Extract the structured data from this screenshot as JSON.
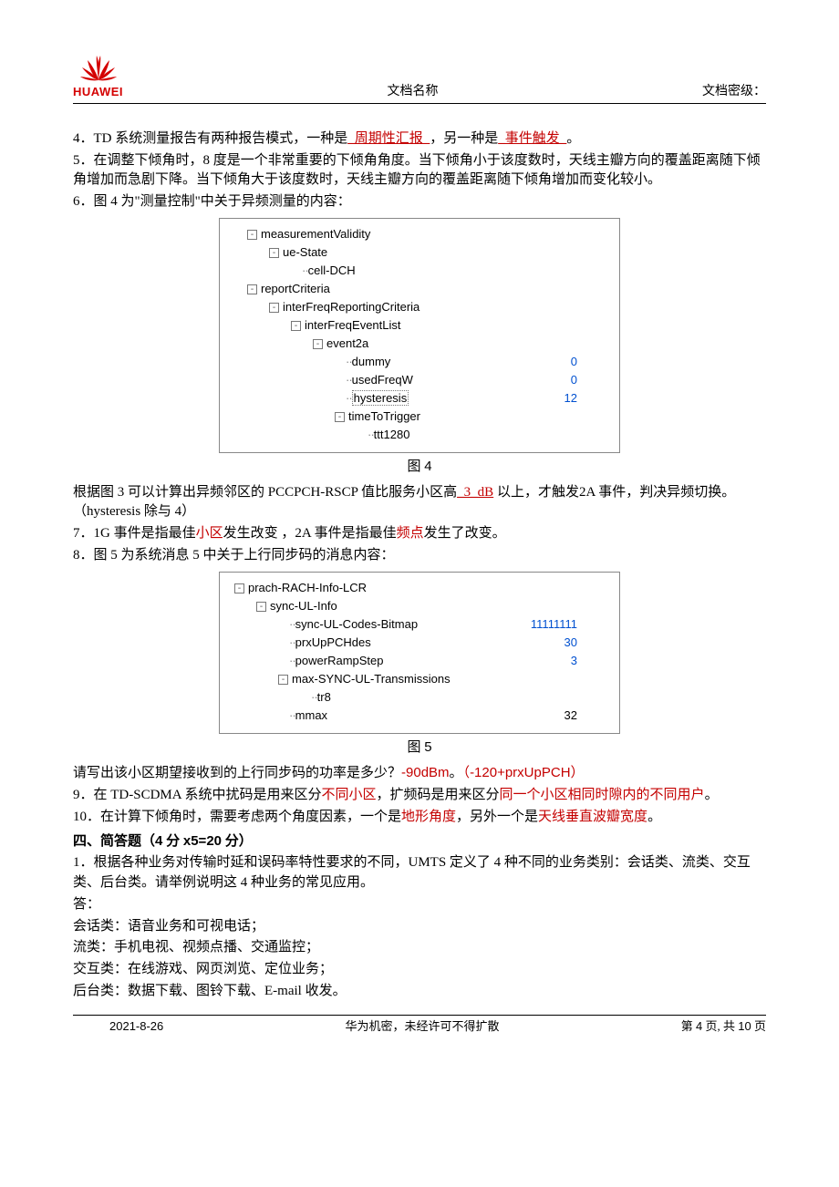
{
  "header": {
    "brand": "HUAWEI",
    "center": "文档名称",
    "right": "文档密级："
  },
  "p4": {
    "pre": "4．TD 系统测量报告有两种报告模式，一种是",
    "a1": "_周期性汇报_",
    "mid": "，另一种是",
    "a2": "_事件触发_",
    "post": "。"
  },
  "p5": "5．在调整下倾角时，8 度是一个非常重要的下倾角角度。当下倾角小于该度数时，天线主瓣方向的覆盖距离随下倾角增加而急剧下降。当下倾角大于该度数时，天线主瓣方向的覆盖距离随下倾角增加而变化较小。",
  "p6": "6．图 4 为\"测量控制\"中关于异频测量的内容：",
  "tree1": {
    "rows": [
      {
        "indent": 24,
        "exp": "-",
        "label": "measurementValidity",
        "val": "",
        "dotpre": ""
      },
      {
        "indent": 48,
        "exp": "-",
        "label": "ue-State",
        "val": "",
        "dotpre": "··"
      },
      {
        "indent": 84,
        "exp": "",
        "label": "cell-DCH",
        "val": "",
        "dotpre": "··"
      },
      {
        "indent": 24,
        "exp": "-",
        "label": "reportCriteria",
        "val": "",
        "dotpre": ""
      },
      {
        "indent": 48,
        "exp": "-",
        "label": "interFreqReportingCriteria",
        "val": "",
        "dotpre": "··"
      },
      {
        "indent": 72,
        "exp": "-",
        "label": "interFreqEventList",
        "val": "",
        "dotpre": "··"
      },
      {
        "indent": 96,
        "exp": "-",
        "label": "event2a",
        "val": "",
        "dotpre": "··"
      },
      {
        "indent": 132,
        "exp": "",
        "label": "dummy",
        "val": "0",
        "dotpre": "··"
      },
      {
        "indent": 132,
        "exp": "",
        "label": "usedFreqW",
        "val": "0",
        "dotpre": "··"
      },
      {
        "indent": 132,
        "exp": "",
        "label": "hysteresis",
        "val": "12",
        "dotpre": "··",
        "boxed": true
      },
      {
        "indent": 120,
        "exp": "-",
        "label": "timeToTrigger",
        "val": "",
        "dotpre": "··"
      },
      {
        "indent": 156,
        "exp": "",
        "label": "ttt1280",
        "val": "",
        "dotpre": "··"
      }
    ]
  },
  "cap4": {
    "zh": "图 ",
    "n": "4"
  },
  "p6b": {
    "pre": "根据图 3 可以计算出异频邻区的 PCCPCH-RSCP 值比服务小区高",
    "a": "_3_dB",
    "post": " 以上，才触发2A 事件，判决异频切换。（hysteresis 除与 4）"
  },
  "p7": {
    "pre": "7．1G 事件是指最佳",
    "a": "小区",
    "mid": "发生改变 ，2A 事件是指最佳",
    "b": "频点",
    "post": "发生了改变。"
  },
  "p8": "8．图 5 为系统消息 5 中关于上行同步码的消息内容：",
  "tree2": {
    "rows": [
      {
        "indent": 10,
        "exp": "-",
        "label": "prach-RACH-Info-LCR",
        "val": ""
      },
      {
        "indent": 34,
        "exp": "-",
        "label": "sync-UL-Info",
        "val": ""
      },
      {
        "indent": 70,
        "exp": "",
        "label": "sync-UL-Codes-Bitmap",
        "val": "11111111"
      },
      {
        "indent": 70,
        "exp": "",
        "label": "prxUpPCHdes",
        "val": "30"
      },
      {
        "indent": 70,
        "exp": "",
        "label": "powerRampStep",
        "val": "3"
      },
      {
        "indent": 58,
        "exp": "-",
        "label": "max-SYNC-UL-Transmissions",
        "val": ""
      },
      {
        "indent": 94,
        "exp": "",
        "label": "tr8",
        "val": ""
      },
      {
        "indent": 70,
        "exp": "",
        "label": "mmax",
        "val": "32"
      }
    ]
  },
  "cap5": {
    "zh": "图 ",
    "n": "5"
  },
  "p8b": {
    "pre": "请写出该小区期望接收到的上行同步码的功率是多少？",
    "a": "-90dBm",
    "mid": "。",
    "b": "（-120+prxUpPCH）"
  },
  "p9": {
    "pre": "9．在 TD-SCDMA 系统中扰码是用来区分",
    "a": "不同小区",
    "mid": "，扩频码是用来区分",
    "b": "同一个小区相同时隙内的不同用户",
    "post": "。"
  },
  "p10": {
    "pre": "10．在计算下倾角时，需要考虑两个角度因素，一个是",
    "a": "地形角度",
    "mid": "，另外一个是",
    "b": "天线垂直波瓣宽度",
    "post": "。"
  },
  "sect4": {
    "t1": "四、简答题（",
    "t2": "4",
    "t3": " 分 ",
    "t4": "x5=20",
    "t5": " 分）"
  },
  "q1": "1．根据各种业务对传输时延和误码率特性要求的不同，UMTS 定义了 4 种不同的业务类别：会话类、流类、交互类、后台类。请举例说明这 4 种业务的常见应用。",
  "ans": "答：",
  "a1": "会话类：语音业务和可视电话；",
  "a2": "流类：手机电视、视频点播、交通监控；",
  "a3": "交互类：在线游戏、网页浏览、定位业务；",
  "a4": "后台类：数据下载、图铃下载、E-mail 收发。",
  "footer": {
    "date": "2021-8-26",
    "mid": "华为机密，未经许可不得扩散",
    "right_pre": "第 ",
    "right_p": "4",
    "right_mid": " 页, 共 ",
    "right_t": "10",
    "right_post": " 页"
  }
}
